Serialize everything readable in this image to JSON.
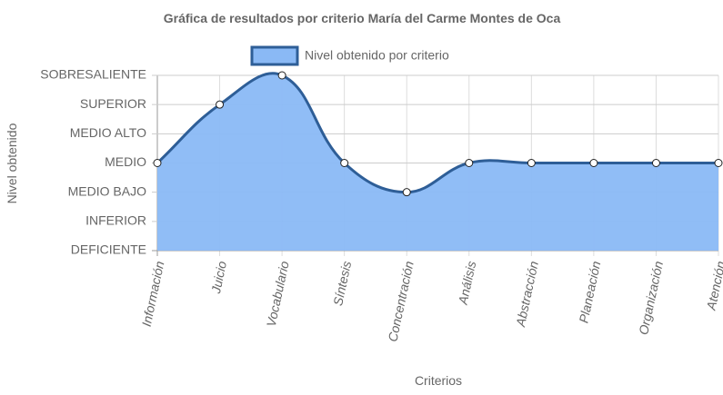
{
  "chart_data": {
    "type": "line",
    "title": "Gráfica de resultados por criterio María del Carme Montes de Oca",
    "x_label": "Criterios",
    "y_label": "Nivel obtenido",
    "categories": [
      "Información",
      "Juicio",
      "Vocabulario",
      "Síntesis",
      "Concentración",
      "Análisis",
      "Abstracción",
      "Planeación",
      "Organización",
      "Atención"
    ],
    "series": [
      {
        "name": "Nivel obtenido por criterio",
        "color": "#2e5e97",
        "fill": "#8ab9f5",
        "values": [
          4,
          6,
          7,
          4,
          3,
          4,
          4,
          4,
          4,
          4
        ]
      }
    ],
    "ylim": [
      1,
      7
    ],
    "yticks": [
      {
        "value": 1,
        "label": "DEFICIENTE"
      },
      {
        "value": 2,
        "label": "INFERIOR"
      },
      {
        "value": 3,
        "label": "MEDIO BAJO"
      },
      {
        "value": 4,
        "label": "MEDIO"
      },
      {
        "value": 5,
        "label": "MEDIO ALTO"
      },
      {
        "value": 6,
        "label": "SUPERIOR"
      },
      {
        "value": 7,
        "label": "SOBRESALIENTE"
      }
    ],
    "grid": true,
    "legend": "top"
  }
}
